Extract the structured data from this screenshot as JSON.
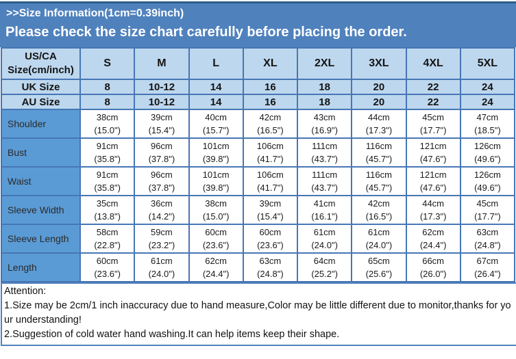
{
  "header": {
    "title": ">>Size Information(1cm=0.39inch)",
    "notice": "Please check the size chart carefully before placing the order."
  },
  "table": {
    "corner_label": "US/CA Size(cm/inch)",
    "size_columns": [
      "S",
      "M",
      "L",
      "XL",
      "2XL",
      "3XL",
      "4XL",
      "5XL"
    ],
    "size_rows": [
      {
        "label": "UK Size",
        "values": [
          "8",
          "10-12",
          "14",
          "16",
          "18",
          "20",
          "22",
          "24"
        ]
      },
      {
        "label": "AU Size",
        "values": [
          "8",
          "10-12",
          "14",
          "16",
          "18",
          "20",
          "22",
          "24"
        ]
      }
    ],
    "measurement_rows": [
      {
        "label": "Shoulder",
        "cells": [
          [
            "38cm",
            "(15.0\")"
          ],
          [
            "39cm",
            "(15.4\")"
          ],
          [
            "40cm",
            "(15.7\")"
          ],
          [
            "42cm",
            "(16.5\")"
          ],
          [
            "43cm",
            "(16.9\")"
          ],
          [
            "44cm",
            "(17.3\")"
          ],
          [
            "45cm",
            "(17.7\")"
          ],
          [
            "47cm",
            "(18.5\")"
          ]
        ]
      },
      {
        "label": "Bust",
        "cells": [
          [
            "91cm",
            "(35.8\")"
          ],
          [
            "96cm",
            "(37.8\")"
          ],
          [
            "101cm",
            "(39.8\")"
          ],
          [
            "106cm",
            "(41.7\")"
          ],
          [
            "111cm",
            "(43.7\")"
          ],
          [
            "116cm",
            "(45.7\")"
          ],
          [
            "121cm",
            "(47.6\")"
          ],
          [
            "126cm",
            "(49.6\")"
          ]
        ]
      },
      {
        "label": "Waist",
        "cells": [
          [
            "91cm",
            "(35.8\")"
          ],
          [
            "96cm",
            "(37.8\")"
          ],
          [
            "101cm",
            "(39.8\")"
          ],
          [
            "106cm",
            "(41.7\")"
          ],
          [
            "111cm",
            "(43.7\")"
          ],
          [
            "116cm",
            "(45.7\")"
          ],
          [
            "121cm",
            "(47.6\")"
          ],
          [
            "126cm",
            "(49.6\")"
          ]
        ]
      },
      {
        "label": "Sleeve Width",
        "cells": [
          [
            "35cm",
            "(13.8\")"
          ],
          [
            "36cm",
            "(14.2\")"
          ],
          [
            "38cm",
            "(15.0\")"
          ],
          [
            "39cm",
            "(15.4\")"
          ],
          [
            "41cm",
            "(16.1\")"
          ],
          [
            "42cm",
            "(16.5\")"
          ],
          [
            "44cm",
            "(17.3\")"
          ],
          [
            "45cm",
            "(17.7\")"
          ]
        ]
      },
      {
        "label": "Sleeve Length",
        "cells": [
          [
            "58cm",
            "(22.8\")"
          ],
          [
            "59cm",
            "(23.2\")"
          ],
          [
            "60cm",
            "(23.6\")"
          ],
          [
            "60cm",
            "(23.6\")"
          ],
          [
            "61cm",
            "(24.0\")"
          ],
          [
            "61cm",
            "(24.0\")"
          ],
          [
            "62cm",
            "(24.4\")"
          ],
          [
            "63cm",
            "(24.8\")"
          ]
        ]
      },
      {
        "label": "Length",
        "cells": [
          [
            "60cm",
            "(23.6\")"
          ],
          [
            "61cm",
            "(24.0\")"
          ],
          [
            "62cm",
            "(24.4\")"
          ],
          [
            "63cm",
            "(24.8\")"
          ],
          [
            "64cm",
            "(25.2\")"
          ],
          [
            "65cm",
            "(25.6\")"
          ],
          [
            "66cm",
            "(26.0\")"
          ],
          [
            "67cm",
            "(26.4\")"
          ]
        ]
      }
    ]
  },
  "attention": {
    "title": "Attention:",
    "lines": [
      "1.Size may be 2cm/1 inch inaccuracy due to hand measure,Color may be little different due to monitor,thanks for your understanding!",
      "2.Suggestion of cold water hand washing.It can help items keep their shape."
    ]
  },
  "colors": {
    "banner_blue": "#4f81bd",
    "banner_top_line": "#2e5c8a",
    "header_light_blue": "#bdd7ee",
    "label_medium_blue": "#5b9bd5",
    "grid_border_blue": "#4676b4",
    "text_dark": "#141414",
    "banner_text": "#ffffff"
  }
}
